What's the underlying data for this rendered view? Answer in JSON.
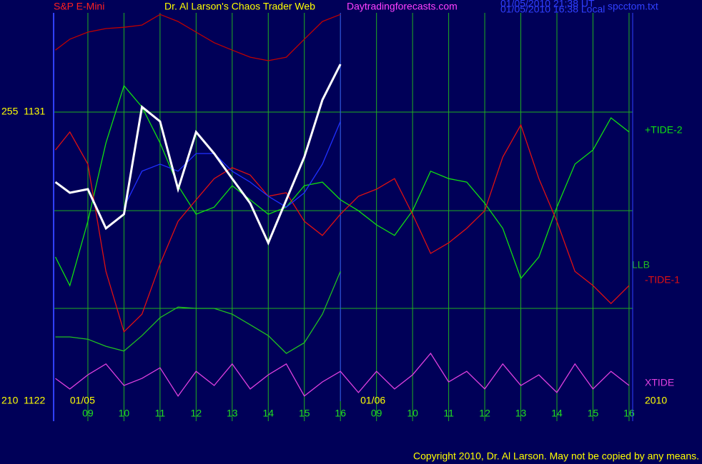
{
  "chart_data": {
    "type": "line",
    "title": "Dr. Al Larson's Chaos Trader Web",
    "market": "S&P E-Mini",
    "site": "Daytradingforecasts.com",
    "timestamps": [
      "01/05/2010 21:38 UT",
      "01/05/2010 16:38 Local"
    ],
    "file": "spcctom.txt",
    "copyright": "Copyright 2010, Dr. Al Larson. May not be copied by any means.",
    "year": "2010",
    "day_labels": [
      {
        "value": -0.15,
        "label": "01/05"
      },
      {
        "value": 7.9,
        "label": "01/06"
      }
    ],
    "xlim": [
      -0.95,
      15.1
    ],
    "xticks": [
      {
        "value": 0,
        "label": "09"
      },
      {
        "value": 1,
        "label": "10"
      },
      {
        "value": 2,
        "label": "11"
      },
      {
        "value": 3,
        "label": "12"
      },
      {
        "value": 4,
        "label": "13"
      },
      {
        "value": 5,
        "label": "14"
      },
      {
        "value": 6,
        "label": "15"
      },
      {
        "value": 7,
        "label": "16"
      },
      {
        "value": 8,
        "label": "09"
      },
      {
        "value": 9,
        "label": "10"
      },
      {
        "value": 10,
        "label": "11"
      },
      {
        "value": 11,
        "label": "12"
      },
      {
        "value": 12,
        "label": "13"
      },
      {
        "value": 13,
        "label": "14"
      },
      {
        "value": 14,
        "label": "15"
      },
      {
        "value": 15,
        "label": "16"
      }
    ],
    "ylim": [
      1122,
      1134.09
    ],
    "yticks": [
      {
        "value": 1131,
        "label": "255  1131"
      },
      {
        "value": 1122,
        "label": "210  1122"
      }
    ],
    "grid_y": [
      1131,
      1127.93,
      1124.89
    ],
    "now_x": 7,
    "x": [
      -0.9,
      -0.5,
      0,
      0.5,
      1,
      1.5,
      2,
      2.5,
      3,
      3.5,
      4,
      4.5,
      5,
      5.5,
      6,
      6.5,
      7,
      7.5,
      8,
      8.5,
      9,
      9.5,
      10,
      10.5,
      11,
      11.5,
      12,
      12.5,
      13,
      13.5,
      14,
      14.5,
      15
    ],
    "series": [
      {
        "color": "#c00000",
        "values": [
          1132.93,
          1133.27,
          1133.49,
          1133.6,
          1133.64,
          1133.71,
          1134.04,
          1133.82,
          1133.49,
          1133.16,
          1132.93,
          1132.71,
          1132.6,
          1132.71,
          1133.27,
          1133.82,
          1134.04,
          null,
          null,
          null,
          null,
          null,
          null,
          null,
          null,
          null,
          null,
          null,
          null,
          null,
          null,
          null,
          null
        ]
      },
      {
        "name": "+TIDE-2",
        "color": "#10e010",
        "values": [
          1126.49,
          1125.6,
          1127.6,
          1130.04,
          1131.82,
          1131.16,
          1130.04,
          1128.71,
          1127.82,
          1128.04,
          1128.71,
          1128.27,
          1127.82,
          1128.04,
          1128.71,
          1128.82,
          1128.27,
          1127.93,
          1127.49,
          1127.16,
          1127.93,
          1129.16,
          1128.93,
          1128.82,
          1128.16,
          1127.38,
          1125.82,
          1126.49,
          1128.04,
          1129.38,
          1129.82,
          1130.82,
          1130.38
        ]
      },
      {
        "name": "-TIDE-1",
        "color": "#e01010",
        "values": [
          1129.82,
          1130.38,
          1129.38,
          1126.04,
          1124.16,
          1124.71,
          1126.27,
          1127.6,
          1128.27,
          1128.93,
          1129.27,
          1129.04,
          1128.38,
          1128.49,
          1127.6,
          1127.16,
          1127.82,
          1128.38,
          1128.6,
          1128.93,
          1127.82,
          1126.6,
          1126.93,
          1127.38,
          1127.93,
          1129.6,
          1130.6,
          1128.93,
          1127.6,
          1126.04,
          1125.6,
          1125.04,
          1125.6
        ]
      },
      {
        "name": "LLB",
        "color": "#20c020",
        "values": [
          1124,
          1124,
          1123.93,
          1123.71,
          1123.56,
          1124.04,
          1124.6,
          1124.93,
          1124.89,
          1124.89,
          1124.71,
          1124.38,
          1124.04,
          1123.49,
          1123.82,
          1124.71,
          1126.04,
          null,
          null,
          null,
          null,
          null,
          null,
          null,
          null,
          null,
          null,
          null,
          null,
          null,
          null,
          null,
          null
        ]
      },
      {
        "name": "XTIDE",
        "color": "#e040e0",
        "values": [
          1122.71,
          1122.38,
          1122.82,
          1123.16,
          1122.49,
          1122.71,
          1123.04,
          1122.16,
          1122.93,
          1122.49,
          1123.16,
          1122.38,
          1122.82,
          1123.16,
          1122.16,
          1122.6,
          1122.93,
          1122.27,
          1122.93,
          1122.38,
          1122.82,
          1123.49,
          1122.6,
          1122.93,
          1122.38,
          1123.16,
          1122.49,
          1122.82,
          1122.27,
          1123.16,
          1122.38,
          1122.93,
          1122.49
        ]
      },
      {
        "color": "#2030ff",
        "values": [
          null,
          null,
          null,
          null,
          1128.04,
          1129.16,
          1129.38,
          1129.16,
          1129.71,
          1129.71,
          1129.16,
          1128.82,
          1128.38,
          1128.04,
          1128.49,
          1129.38,
          1130.71,
          null,
          null,
          null,
          null,
          null,
          null,
          null,
          null,
          null,
          null,
          null,
          null,
          null,
          null,
          null,
          null
        ]
      },
      {
        "color": "#ffffff",
        "values": [
          1128.82,
          1128.49,
          1128.6,
          1127.38,
          1127.82,
          1131.16,
          1130.71,
          1128.6,
          1130.38,
          1129.71,
          1128.93,
          1128.16,
          1126.93,
          1128.27,
          1129.6,
          1131.38,
          1132.49,
          null,
          null,
          null,
          null,
          null,
          null,
          null,
          null,
          null,
          null,
          null,
          null,
          null,
          null,
          null,
          null
        ]
      }
    ]
  }
}
